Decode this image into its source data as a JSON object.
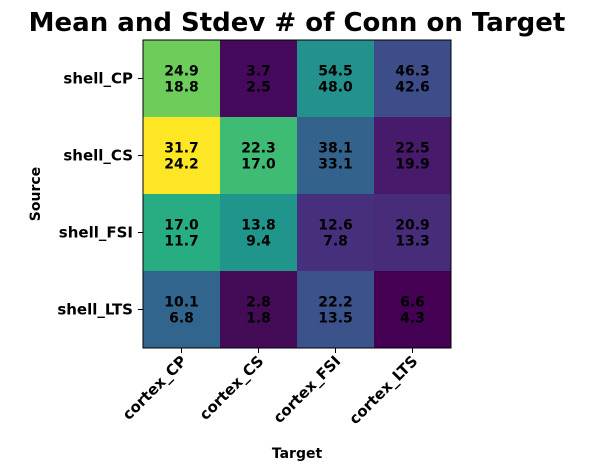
{
  "chart_data": {
    "type": "heatmap",
    "title": "Mean and Stdev # of Conn on Target",
    "xlabel": "Target",
    "ylabel": "Source",
    "x_categories": [
      "cortex_CP",
      "cortex_CS",
      "cortex_FSI",
      "cortex_LTS"
    ],
    "y_categories": [
      "shell_CP",
      "shell_CS",
      "shell_FSI",
      "shell_LTS"
    ],
    "colormap": "viridis",
    "mean": [
      [
        24.9,
        3.7,
        54.5,
        46.3
      ],
      [
        31.7,
        22.3,
        38.1,
        22.5
      ],
      [
        17.0,
        13.8,
        12.6,
        20.9
      ],
      [
        10.1,
        2.8,
        22.2,
        6.6
      ]
    ],
    "stdev": [
      [
        18.8,
        2.5,
        48.0,
        42.6
      ],
      [
        24.2,
        17.0,
        33.1,
        19.9
      ],
      [
        11.7,
        9.4,
        7.8,
        13.3
      ],
      [
        6.8,
        1.8,
        13.5,
        4.3
      ]
    ],
    "cell_colors": [
      [
        "#6ccd5a",
        "#450a5c",
        "#24928c",
        "#3d4d8a"
      ],
      [
        "#fde725",
        "#3fbc73",
        "#33638d",
        "#481a6c"
      ],
      [
        "#27ad81",
        "#1f958b",
        "#46307e",
        "#472c7a"
      ],
      [
        "#31658e",
        "#440c56",
        "#3b528b",
        "#440154"
      ]
    ]
  }
}
